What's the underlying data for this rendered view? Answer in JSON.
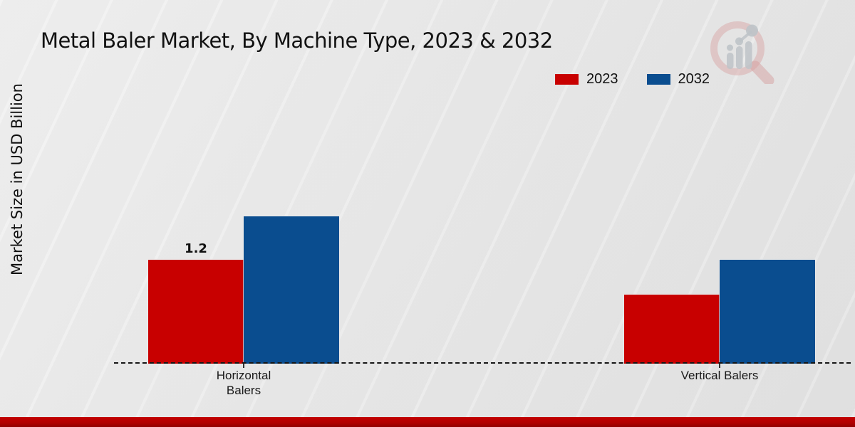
{
  "header": {
    "title": "Metal Baler Market, By Machine Type, 2023 & 2032"
  },
  "chart_data": {
    "type": "bar",
    "title": "Metal Baler Market, By Machine Type, 2023 & 2032",
    "categories": [
      "Horizontal Balers",
      "Vertical Balers"
    ],
    "series": [
      {
        "name": "2023",
        "color": "#c80000",
        "values": [
          1.2,
          0.8
        ],
        "data_labels": [
          "1.2",
          ""
        ]
      },
      {
        "name": "2032",
        "color": "#0a4d8f",
        "values": [
          1.7,
          1.2
        ],
        "data_labels": [
          "",
          ""
        ]
      }
    ],
    "xlabel": "",
    "ylabel": "Market Size in USD Billion",
    "ylim": [
      0,
      2.2
    ],
    "grid": false,
    "y_axis_ticks_visible": false,
    "legend_position": "top-right",
    "baseline_style": "dashed"
  },
  "colors": {
    "series_2023": "#c80000",
    "series_2032": "#0a4d8f",
    "background": "#e9e9e9",
    "baseline": "#161616",
    "bottom_bar": "#b00000",
    "watermark_pink": "#d9a8a8",
    "watermark_gray": "#c5c9cd"
  },
  "watermark": {
    "icon": "magnifier-bar-chart-logo"
  }
}
